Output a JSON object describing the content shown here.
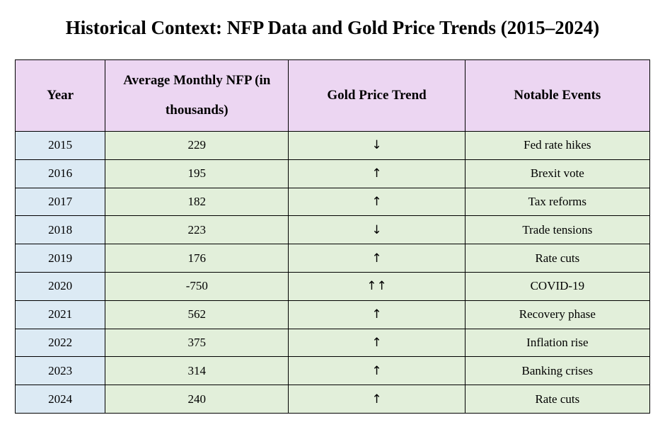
{
  "title": "Historical Context: NFP Data and Gold Price Trends (2015–2024)",
  "headers": [
    "Year",
    "Average Monthly NFP (in thousands)",
    "Gold Price Trend",
    "Notable Events"
  ],
  "rows": [
    {
      "year": "2015",
      "nfp": "229",
      "trend": "↓",
      "event": "Fed rate hikes"
    },
    {
      "year": "2016",
      "nfp": "195",
      "trend": "↑",
      "event": "Brexit vote"
    },
    {
      "year": "2017",
      "nfp": "182",
      "trend": "↑",
      "event": "Tax reforms"
    },
    {
      "year": "2018",
      "nfp": "223",
      "trend": "↓",
      "event": "Trade tensions"
    },
    {
      "year": "2019",
      "nfp": "176",
      "trend": "↑",
      "event": "Rate cuts"
    },
    {
      "year": "2020",
      "nfp": "-750",
      "trend": "↑↑",
      "event": "COVID-19"
    },
    {
      "year": "2021",
      "nfp": "562",
      "trend": "↑",
      "event": "Recovery phase"
    },
    {
      "year": "2022",
      "nfp": "375",
      "trend": "↑",
      "event": "Inflation rise"
    },
    {
      "year": "2023",
      "nfp": "314",
      "trend": "↑",
      "event": "Banking crises"
    },
    {
      "year": "2024",
      "nfp": "240",
      "trend": "↑",
      "event": "Rate cuts"
    }
  ],
  "colors": {
    "header_bg": "#ecd6f2",
    "year_bg": "#dceaf4",
    "data_bg": "#e2efda"
  }
}
